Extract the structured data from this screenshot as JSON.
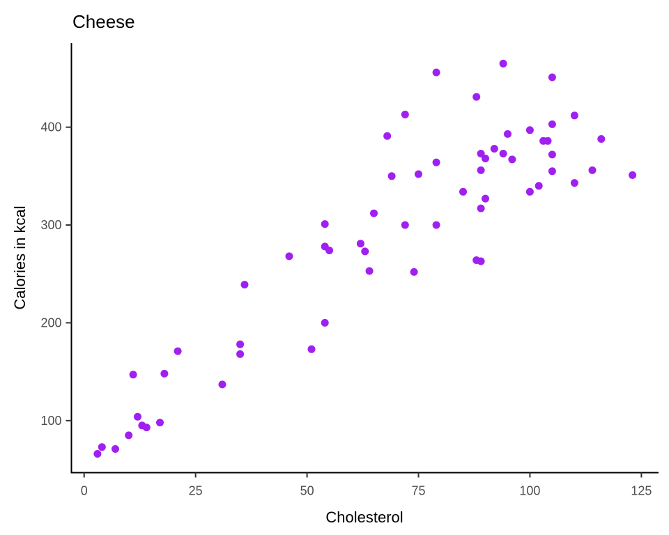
{
  "chart_data": {
    "type": "scatter",
    "title": "Cheese",
    "xlabel": "Cholesterol",
    "ylabel": "Calories in kcal",
    "x_ticks": [
      0,
      25,
      50,
      75,
      100,
      125
    ],
    "y_ticks": [
      100,
      200,
      300,
      400
    ],
    "xlim": [
      -2.85,
      128.85
    ],
    "ylim": [
      46.8,
      485.9
    ],
    "grid": "off",
    "legend": "none",
    "point_color": "#A020F0",
    "point_radius": 5.5,
    "points": [
      [
        3,
        66
      ],
      [
        4,
        73
      ],
      [
        7,
        71
      ],
      [
        10,
        85
      ],
      [
        11,
        147
      ],
      [
        12,
        104
      ],
      [
        13,
        95
      ],
      [
        14,
        93
      ],
      [
        17,
        98
      ],
      [
        18,
        148
      ],
      [
        21,
        171
      ],
      [
        31,
        137
      ],
      [
        35,
        168
      ],
      [
        35,
        178
      ],
      [
        36,
        239
      ],
      [
        46,
        268
      ],
      [
        51,
        173
      ],
      [
        54,
        200
      ],
      [
        54,
        278
      ],
      [
        54,
        301
      ],
      [
        55,
        274
      ],
      [
        62,
        281
      ],
      [
        63,
        273
      ],
      [
        64,
        253
      ],
      [
        65,
        312
      ],
      [
        68,
        391
      ],
      [
        69,
        350
      ],
      [
        72,
        300
      ],
      [
        72,
        413
      ],
      [
        74,
        252
      ],
      [
        75,
        352
      ],
      [
        79,
        300
      ],
      [
        79,
        364
      ],
      [
        79,
        456
      ],
      [
        85,
        334
      ],
      [
        88,
        264
      ],
      [
        88,
        431
      ],
      [
        89,
        263
      ],
      [
        89,
        317
      ],
      [
        89,
        356
      ],
      [
        89,
        373
      ],
      [
        90,
        327
      ],
      [
        90,
        368
      ],
      [
        92,
        378
      ],
      [
        94,
        373
      ],
      [
        94,
        465
      ],
      [
        95,
        393
      ],
      [
        96,
        367
      ],
      [
        100,
        334
      ],
      [
        100,
        397
      ],
      [
        102,
        340
      ],
      [
        103,
        386
      ],
      [
        104,
        386
      ],
      [
        105,
        355
      ],
      [
        105,
        372
      ],
      [
        105,
        403
      ],
      [
        105,
        451
      ],
      [
        110,
        343
      ],
      [
        110,
        412
      ],
      [
        114,
        356
      ],
      [
        116,
        388
      ],
      [
        123,
        351
      ]
    ]
  },
  "colors": {
    "background": "#ffffff",
    "axis": "#000000",
    "tick_text": "#4d4d4d",
    "point": "#A020F0"
  }
}
